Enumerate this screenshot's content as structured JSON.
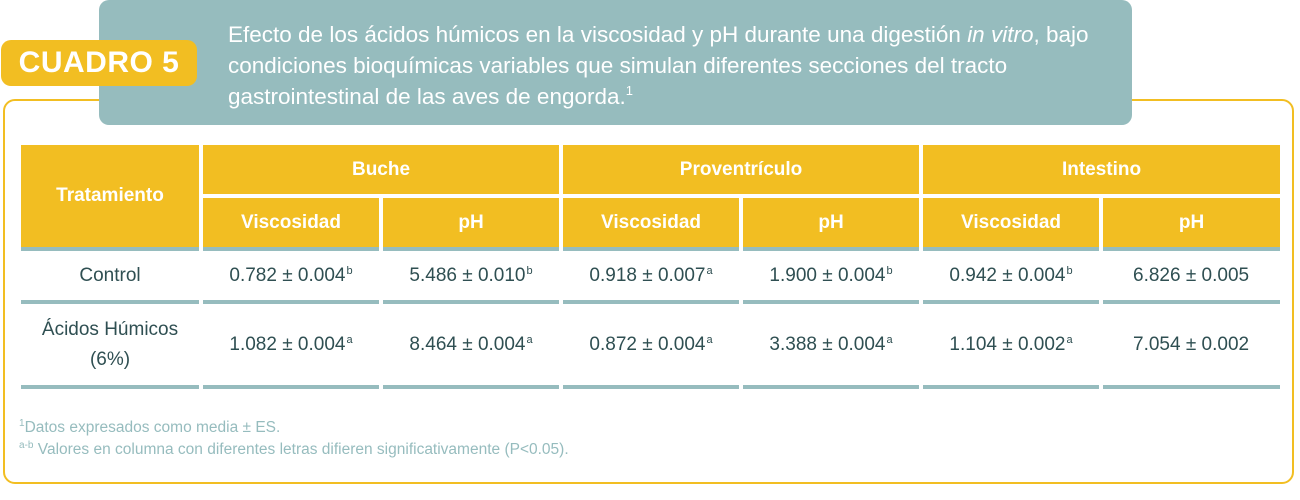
{
  "badge": "CUADRO 5",
  "title": {
    "part1": "Efecto de los ácidos húmicos en la viscosidad y pH durante una digestión ",
    "italic": "in vitro",
    "part2": ", bajo condiciones bioquímicas variables que simulan diferentes secciones del tracto gastrointestinal de las aves de engorda.",
    "sup": "1"
  },
  "table": {
    "row_header": "Tratamiento",
    "groups": [
      "Buche",
      "Proventrículo",
      "Intestino"
    ],
    "subheaders": [
      "Viscosidad",
      "pH",
      "Viscosidad",
      "pH",
      "Viscosidad",
      "pH"
    ],
    "rows": [
      {
        "label": "Control",
        "cells": [
          {
            "value": "0.782 ± 0.004",
            "sup": "b"
          },
          {
            "value": "5.486 ± 0.010",
            "sup": "b"
          },
          {
            "value": "0.918 ± 0.007",
            "sup": "a"
          },
          {
            "value": "1.900 ± 0.004",
            "sup": "b"
          },
          {
            "value": "0.942 ± 0.004",
            "sup": "b"
          },
          {
            "value": "6.826 ± 0.005",
            "sup": ""
          }
        ]
      },
      {
        "label": "Ácidos Húmicos (6%)",
        "cells": [
          {
            "value": "1.082 ± 0.004",
            "sup": "a"
          },
          {
            "value": "8.464 ± 0.004",
            "sup": "a"
          },
          {
            "value": "0.872 ± 0.004",
            "sup": "a"
          },
          {
            "value": "3.388 ± 0.004",
            "sup": "a"
          },
          {
            "value": "1.104 ± 0.002",
            "sup": "a"
          },
          {
            "value": "7.054 ± 0.002",
            "sup": ""
          }
        ]
      }
    ]
  },
  "footnotes": [
    {
      "sup": "1",
      "text": "Datos expresados como media ± ES."
    },
    {
      "sup": "a-b",
      "text": " Valores en columna con diferentes letras difieren significativamente (P<0.05)."
    }
  ]
}
